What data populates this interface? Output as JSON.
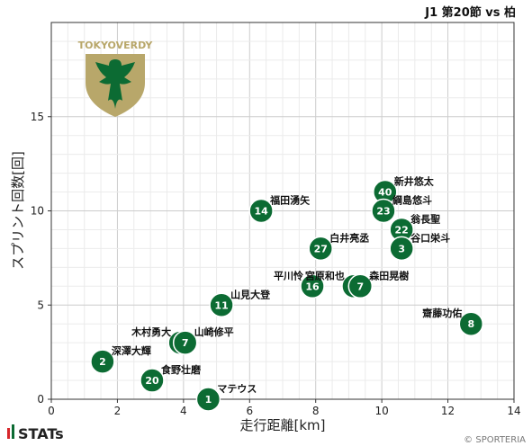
{
  "header": {
    "title": "J1 第20節 vs 柏"
  },
  "logo": {
    "text": "TOKYOVERDY",
    "colors": {
      "gold": "#b8a76a",
      "green": "#0c6b33"
    }
  },
  "brand": {
    "text": "STATs",
    "icon": "stats-bars-icon"
  },
  "copyright": "© SPORTERIA",
  "colors": {
    "marker": "#0c6b33",
    "grid": "#cccccc",
    "minor_grid": "#ebebeb",
    "stats_red": "#d7262b",
    "stats_green": "#0c6b33"
  },
  "chart_data": {
    "type": "scatter",
    "xlabel": "走行距離[km]",
    "ylabel": "スプリント回数[回]",
    "xlim": [
      0,
      14
    ],
    "ylim": [
      0,
      20
    ],
    "x_ticks": [
      0,
      2,
      4,
      6,
      8,
      10,
      12,
      14
    ],
    "y_ticks": [
      0,
      5,
      10,
      15
    ],
    "grid": true,
    "points": [
      {
        "number": "1",
        "name": "マテウス",
        "x": 4.75,
        "y": 0,
        "label_side": "right"
      },
      {
        "number": "2",
        "name": "深澤大輝",
        "x": 1.55,
        "y": 2,
        "label_side": "right"
      },
      {
        "number": "20",
        "name": "食野壮磨",
        "x": 3.05,
        "y": 1,
        "label_side": "right"
      },
      {
        "number": "18",
        "name": "木村勇大",
        "x": 3.9,
        "y": 3,
        "label_side": "left"
      },
      {
        "number": "7",
        "name": "山崎修平",
        "x": 4.05,
        "y": 3,
        "label_side": "right"
      },
      {
        "number": "11",
        "name": "山見大登",
        "x": 5.15,
        "y": 5,
        "label_side": "right"
      },
      {
        "number": "14",
        "name": "福田湧矢",
        "x": 6.35,
        "y": 10,
        "label_side": "right"
      },
      {
        "number": "16",
        "name": "平川怜",
        "x": 7.9,
        "y": 6,
        "label_side": "left"
      },
      {
        "number": "27",
        "name": "白井亮丞",
        "x": 8.15,
        "y": 8,
        "label_side": "right"
      },
      {
        "number": "6",
        "name": "宮原和也",
        "x": 9.15,
        "y": 6,
        "label_side": "left"
      },
      {
        "number": "7",
        "name": "森田晃樹",
        "x": 9.35,
        "y": 6,
        "label_side": "right"
      },
      {
        "number": "40",
        "name": "新井悠太",
        "x": 10.1,
        "y": 11,
        "label_side": "right"
      },
      {
        "number": "23",
        "name": "綱島悠斗",
        "x": 10.05,
        "y": 10,
        "label_side": "right"
      },
      {
        "number": "22",
        "name": "翁長聖",
        "x": 10.6,
        "y": 9,
        "label_side": "right"
      },
      {
        "number": "3",
        "name": "谷口栄斗",
        "x": 10.6,
        "y": 8,
        "label_side": "right"
      },
      {
        "number": "8",
        "name": "齋藤功佑",
        "x": 12.7,
        "y": 4,
        "label_side": "left"
      }
    ]
  }
}
